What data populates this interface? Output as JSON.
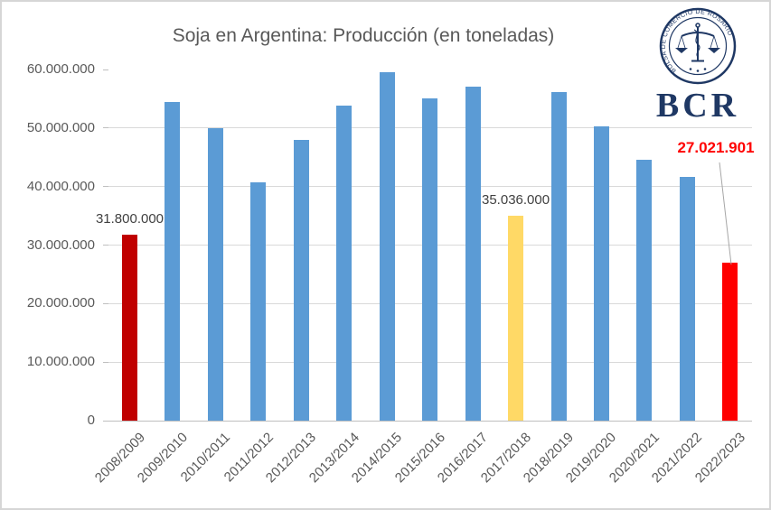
{
  "page": {
    "background": "#FFFFFF",
    "border_color": "#D6D6D6"
  },
  "logo": {
    "text": "BCR",
    "seal_text": "BOLSA DE COMERCIO DE ROSARIO",
    "color": "#1F3864"
  },
  "chart_data": {
    "type": "bar",
    "title": "Soja en Argentina: Producción (en toneladas)",
    "title_color": "#595959",
    "xlabel": "",
    "ylabel": "",
    "ylim": [
      0,
      60000000
    ],
    "grid": true,
    "legend": "none",
    "categories": [
      "2008/2009",
      "2009/2010",
      "2010/2011",
      "2011/2012",
      "2012/2013",
      "2013/2014",
      "2014/2015",
      "2015/2016",
      "2016/2017",
      "2017/2018",
      "2018/2019",
      "2019/2020",
      "2020/2021",
      "2021/2022",
      "2022/2023"
    ],
    "values": [
      31800000,
      54400000,
      50000000,
      40700000,
      48000000,
      53800000,
      59500000,
      55000000,
      57000000,
      35036000,
      56100000,
      50300000,
      44500000,
      41600000,
      27021901
    ],
    "bar_colors": [
      "#C00000",
      "#5B9BD5",
      "#5B9BD5",
      "#5B9BD5",
      "#5B9BD5",
      "#5B9BD5",
      "#5B9BD5",
      "#5B9BD5",
      "#5B9BD5",
      "#FFD966",
      "#5B9BD5",
      "#5B9BD5",
      "#5B9BD5",
      "#5B9BD5",
      "#FF0000"
    ],
    "data_labels": [
      {
        "index": 0,
        "text": "31.800.000",
        "color": "#404040",
        "callout": false
      },
      {
        "index": 9,
        "text": "35.036.000",
        "color": "#404040",
        "callout": false
      },
      {
        "index": 14,
        "text": "27.021.901",
        "color": "#FF0000",
        "callout": true
      }
    ],
    "y_axis": {
      "ticks": [
        {
          "label": "60.000.000",
          "value": 60000000
        },
        {
          "label": "50.000.000",
          "value": 50000000
        },
        {
          "label": "40.000.000",
          "value": 40000000
        },
        {
          "label": "30.000.000",
          "value": 30000000
        },
        {
          "label": "20.000.000",
          "value": 20000000
        },
        {
          "label": "10.000.000",
          "value": 10000000
        },
        {
          "label": "0",
          "value": 0
        }
      ]
    },
    "gridline_color": "#D9D9D9",
    "axis_color": "#BFBFBF",
    "label_color": "#595959"
  }
}
